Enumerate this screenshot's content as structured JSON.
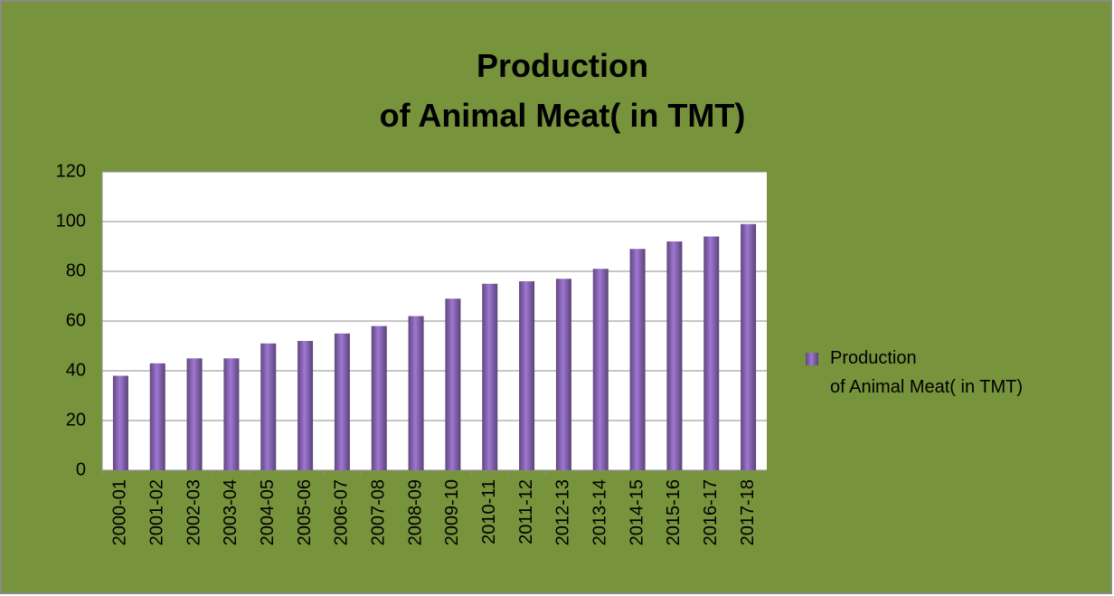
{
  "chart_data": {
    "type": "bar",
    "title": "Production\nof Animal Meat( in TMT)",
    "categories": [
      "2000-01",
      "2001-02",
      "2002-03",
      "2003-04",
      "2004-05",
      "2005-06",
      "2006-07",
      "2007-08",
      "2008-09",
      "2009-10",
      "2010-11",
      "2011-12",
      "2012-13",
      "2013-14",
      "2014-15",
      "2015-16",
      "2016-17",
      "2017-18"
    ],
    "series": [
      {
        "name": "Production\nof Animal Meat( in TMT)",
        "color": "#7f5fa8",
        "values": [
          38,
          43,
          45,
          45,
          51,
          52,
          55,
          58,
          62,
          69,
          75,
          76,
          77,
          81,
          89,
          92,
          94,
          99
        ]
      }
    ],
    "ylim": [
      0,
      120
    ],
    "yticks": [
      0,
      20,
      40,
      60,
      80,
      100,
      120
    ],
    "grid": true,
    "legend": "right"
  }
}
